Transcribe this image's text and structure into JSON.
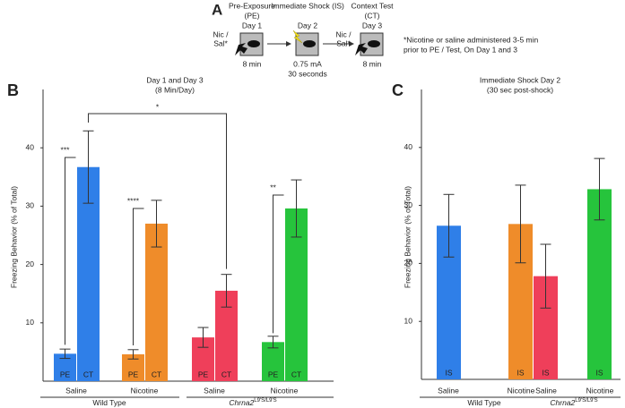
{
  "panel_a": {
    "label": "A",
    "steps": [
      {
        "title": "Pre-Exposure",
        "abbr": "(PE)",
        "day": "Day 1",
        "drug": [
          "Nic /",
          "Sal*"
        ],
        "notes": [
          "8 min"
        ]
      },
      {
        "title": "Immediate Shock (IS)",
        "day": "Day 2",
        "notes": [
          "0.75 mA",
          "30 seconds"
        ]
      },
      {
        "title": "Context Test",
        "abbr": "(CT)",
        "day": "Day 3",
        "drug": [
          "Nic /",
          "Sal*"
        ],
        "notes": [
          "8 min"
        ]
      }
    ],
    "footnote": [
      "*Nicotine or saline administered 3-5 min",
      "prior to PE / Test, On Day 1 and 3"
    ]
  },
  "chart_data": [
    {
      "type": "bar",
      "panel": "B",
      "title": [
        "Day 1 and Day 3",
        "(8 Min/Day)"
      ],
      "ylabel": "Freezing Behavior (% of Total)",
      "ylim": [
        0,
        50
      ],
      "yticks": [
        10,
        20,
        30,
        40
      ],
      "categories": [
        "PE",
        "CT",
        "PE",
        "CT",
        "PE",
        "CT",
        "PE",
        "CT"
      ],
      "values": [
        4.7,
        36.7,
        4.6,
        27.0,
        7.5,
        15.5,
        6.7,
        29.6
      ],
      "errors": [
        0.8,
        6.2,
        0.8,
        4.0,
        1.7,
        2.8,
        1.0,
        4.9
      ],
      "colors": [
        "#2f7fe8",
        "#2f7fe8",
        "#ef8c2a",
        "#ef8c2a",
        "#ef3f5a",
        "#ef3f5a",
        "#26c43c",
        "#26c43c"
      ],
      "groups": [
        "Saline",
        "Nicotine",
        "Saline",
        "Nicotine"
      ],
      "genotypes": [
        {
          "name": "Wild Type"
        },
        {
          "name": "Chrna2",
          "sup": "L9'S/L9'S"
        }
      ],
      "annotations": [
        "***",
        "****",
        "**",
        "*"
      ]
    },
    {
      "type": "bar",
      "panel": "C",
      "title": [
        "Immediate Shock Day 2",
        "(30 sec post-shock)"
      ],
      "ylabel": "Freezing Behavior (% of Total)",
      "ylim": [
        0,
        50
      ],
      "yticks": [
        10,
        20,
        30,
        40
      ],
      "categories": [
        "IS",
        "IS",
        "IS",
        "IS"
      ],
      "values": [
        26.5,
        26.8,
        17.8,
        32.8
      ],
      "errors": [
        5.4,
        6.7,
        5.5,
        5.3
      ],
      "colors": [
        "#2f7fe8",
        "#ef8c2a",
        "#ef3f5a",
        "#26c43c"
      ],
      "groups": [
        "Saline",
        "Nicotine",
        "Saline",
        "Nicotine"
      ],
      "genotypes": [
        {
          "name": "Wild Type"
        },
        {
          "name": "Chrna2",
          "sup": "L9'S/L9'S"
        }
      ]
    }
  ]
}
